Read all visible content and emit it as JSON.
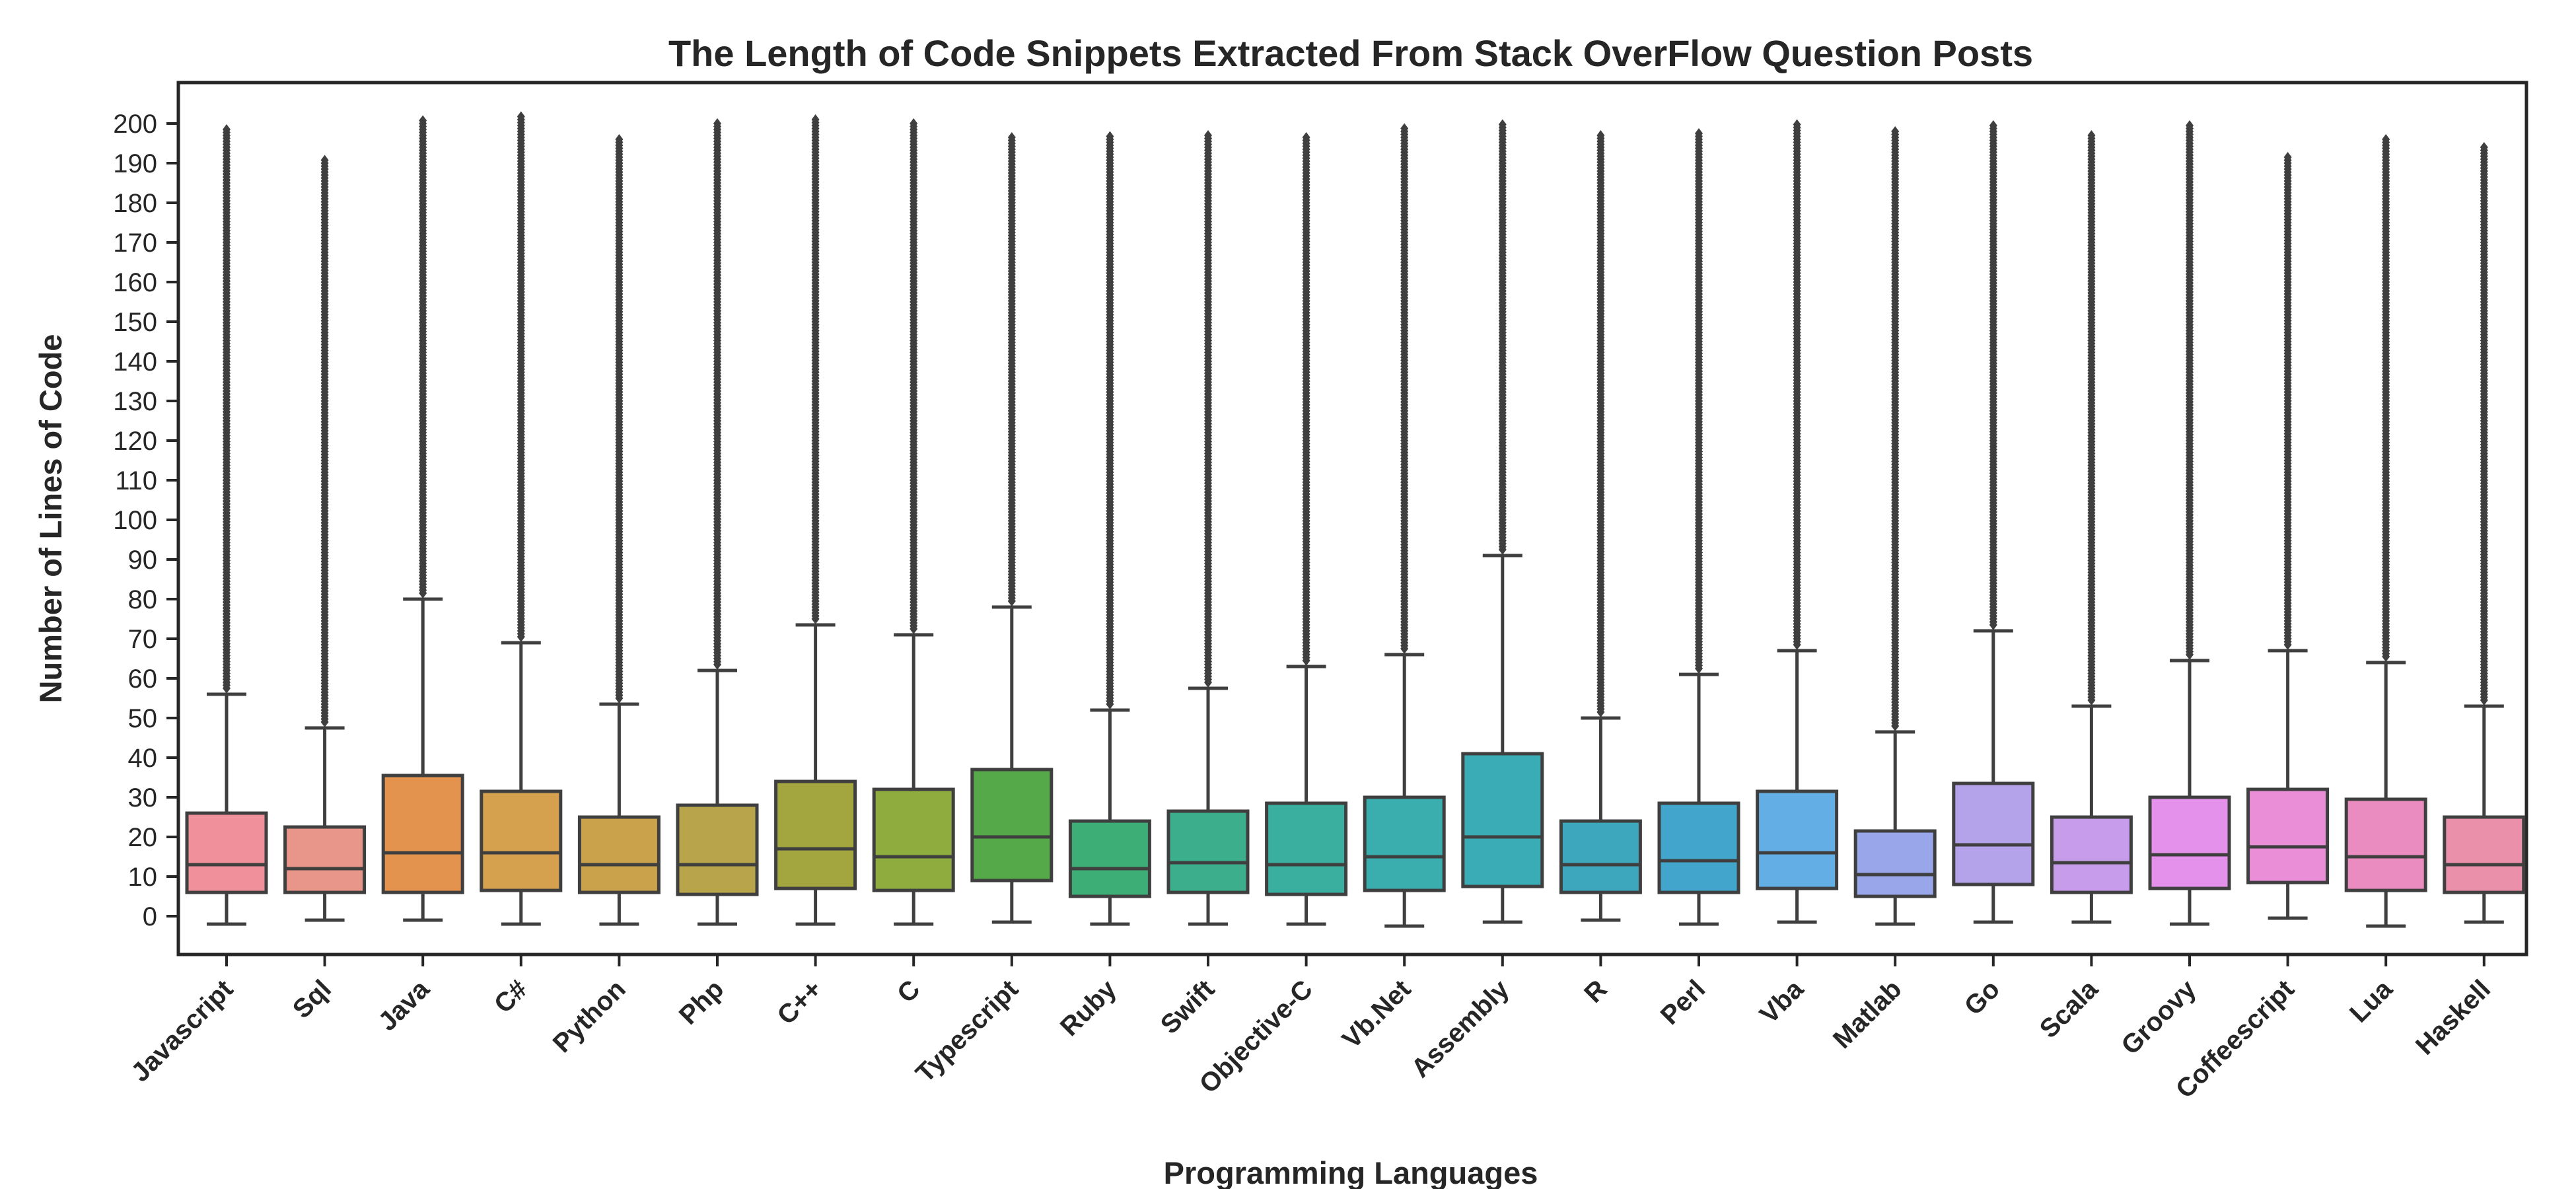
{
  "chart_data": {
    "type": "box",
    "title": "The Length of Code Snippets Extracted From Stack OverFlow Question Posts",
    "xlabel": "Programming Languages",
    "ylabel": "Number of Lines of Code",
    "ylim": [
      -10,
      210
    ],
    "yticks": [
      0,
      10,
      20,
      30,
      40,
      50,
      60,
      70,
      80,
      90,
      100,
      110,
      120,
      130,
      140,
      150,
      160,
      170,
      180,
      190,
      200
    ],
    "grid": false,
    "legend": "none",
    "categories": [
      "Javascript",
      "Sql",
      "Java",
      "C#",
      "Python",
      "Php",
      "C++",
      "C",
      "Typescript",
      "Ruby",
      "Swift",
      "Objective-C",
      "Vb.Net",
      "Assembly",
      "R",
      "Perl",
      "Vba",
      "Matlab",
      "Go",
      "Scala",
      "Groovy",
      "Coffeescript",
      "Lua",
      "Haskell"
    ],
    "colors": [
      "#f0909b",
      "#e9968a",
      "#e3934e",
      "#d6a14f",
      "#c9a24b",
      "#b8a44a",
      "#a3a63f",
      "#8fad3e",
      "#55a948",
      "#3cae76",
      "#3cae8c",
      "#3aae9f",
      "#3aaeae",
      "#3aacb5",
      "#3ca7bd",
      "#42a5cc",
      "#62aee5",
      "#99a7ea",
      "#b4a3ea",
      "#c79deb",
      "#e391ea",
      "#ea8ed8",
      "#ea8cc0",
      "#ea90ab"
    ],
    "series": [
      {
        "category": "Javascript",
        "whisker_low": -2,
        "q1": 6,
        "median": 13,
        "q3": 26,
        "whisker_high": 56,
        "outlier_max": 199
      },
      {
        "category": "Sql",
        "whisker_low": -1,
        "q1": 6,
        "median": 12,
        "q3": 22.5,
        "whisker_high": 47.5,
        "outlier_max": 191
      },
      {
        "category": "Java",
        "whisker_low": -1,
        "q1": 6,
        "median": 16,
        "q3": 35.5,
        "whisker_high": 80,
        "outlier_max": 201
      },
      {
        "category": "C#",
        "whisker_low": -2,
        "q1": 6.5,
        "median": 16,
        "q3": 31.5,
        "whisker_high": 69,
        "outlier_max": 202
      },
      {
        "category": "Python",
        "whisker_low": -2,
        "q1": 6,
        "median": 13,
        "q3": 25,
        "whisker_high": 53.5,
        "outlier_max": 196
      },
      {
        "category": "Php",
        "whisker_low": -2,
        "q1": 5.5,
        "median": 13,
        "q3": 28,
        "whisker_high": 62,
        "outlier_max": 200
      },
      {
        "category": "C++",
        "whisker_low": -2,
        "q1": 7,
        "median": 17,
        "q3": 34,
        "whisker_high": 73.5,
        "outlier_max": 201
      },
      {
        "category": "C",
        "whisker_low": -2,
        "q1": 6.5,
        "median": 15,
        "q3": 32,
        "whisker_high": 71,
        "outlier_max": 200
      },
      {
        "category": "Typescript",
        "whisker_low": -1.5,
        "q1": 9,
        "median": 20,
        "q3": 37,
        "whisker_high": 78,
        "outlier_max": 197
      },
      {
        "category": "Ruby",
        "whisker_low": -2,
        "q1": 5,
        "median": 12,
        "q3": 24,
        "whisker_high": 52,
        "outlier_max": 197
      },
      {
        "category": "Swift",
        "whisker_low": -2,
        "q1": 6,
        "median": 13.5,
        "q3": 26.5,
        "whisker_high": 57.5,
        "outlier_max": 197
      },
      {
        "category": "Objective-C",
        "whisker_low": -2,
        "q1": 5.5,
        "median": 13,
        "q3": 28.5,
        "whisker_high": 63,
        "outlier_max": 197
      },
      {
        "category": "Vb.Net",
        "whisker_low": -2.5,
        "q1": 6.5,
        "median": 15,
        "q3": 30,
        "whisker_high": 66,
        "outlier_max": 199
      },
      {
        "category": "Assembly",
        "whisker_low": -1.5,
        "q1": 7.5,
        "median": 20,
        "q3": 41,
        "whisker_high": 91,
        "outlier_max": 200
      },
      {
        "category": "R",
        "whisker_low": -1,
        "q1": 6,
        "median": 13,
        "q3": 24,
        "whisker_high": 50,
        "outlier_max": 197
      },
      {
        "category": "Perl",
        "whisker_low": -2,
        "q1": 6,
        "median": 14,
        "q3": 28.5,
        "whisker_high": 61,
        "outlier_max": 198
      },
      {
        "category": "Vba",
        "whisker_low": -1.5,
        "q1": 7,
        "median": 16,
        "q3": 31.5,
        "whisker_high": 67,
        "outlier_max": 200
      },
      {
        "category": "Matlab",
        "whisker_low": -2,
        "q1": 5,
        "median": 10.5,
        "q3": 21.5,
        "whisker_high": 46.5,
        "outlier_max": 198
      },
      {
        "category": "Go",
        "whisker_low": -1.5,
        "q1": 8,
        "median": 18,
        "q3": 33.5,
        "whisker_high": 72,
        "outlier_max": 200
      },
      {
        "category": "Scala",
        "whisker_low": -1.5,
        "q1": 6,
        "median": 13.5,
        "q3": 25,
        "whisker_high": 53,
        "outlier_max": 197
      },
      {
        "category": "Groovy",
        "whisker_low": -2,
        "q1": 7,
        "median": 15.5,
        "q3": 30,
        "whisker_high": 64.5,
        "outlier_max": 200
      },
      {
        "category": "Coffeescript",
        "whisker_low": -0.5,
        "q1": 8.5,
        "median": 17.5,
        "q3": 32,
        "whisker_high": 67,
        "outlier_max": 192
      },
      {
        "category": "Lua",
        "whisker_low": -2.5,
        "q1": 6.5,
        "median": 15,
        "q3": 29.5,
        "whisker_high": 64,
        "outlier_max": 196
      },
      {
        "category": "Haskell",
        "whisker_low": -1.5,
        "q1": 6,
        "median": 13,
        "q3": 25,
        "whisker_high": 53,
        "outlier_max": 194
      }
    ]
  }
}
